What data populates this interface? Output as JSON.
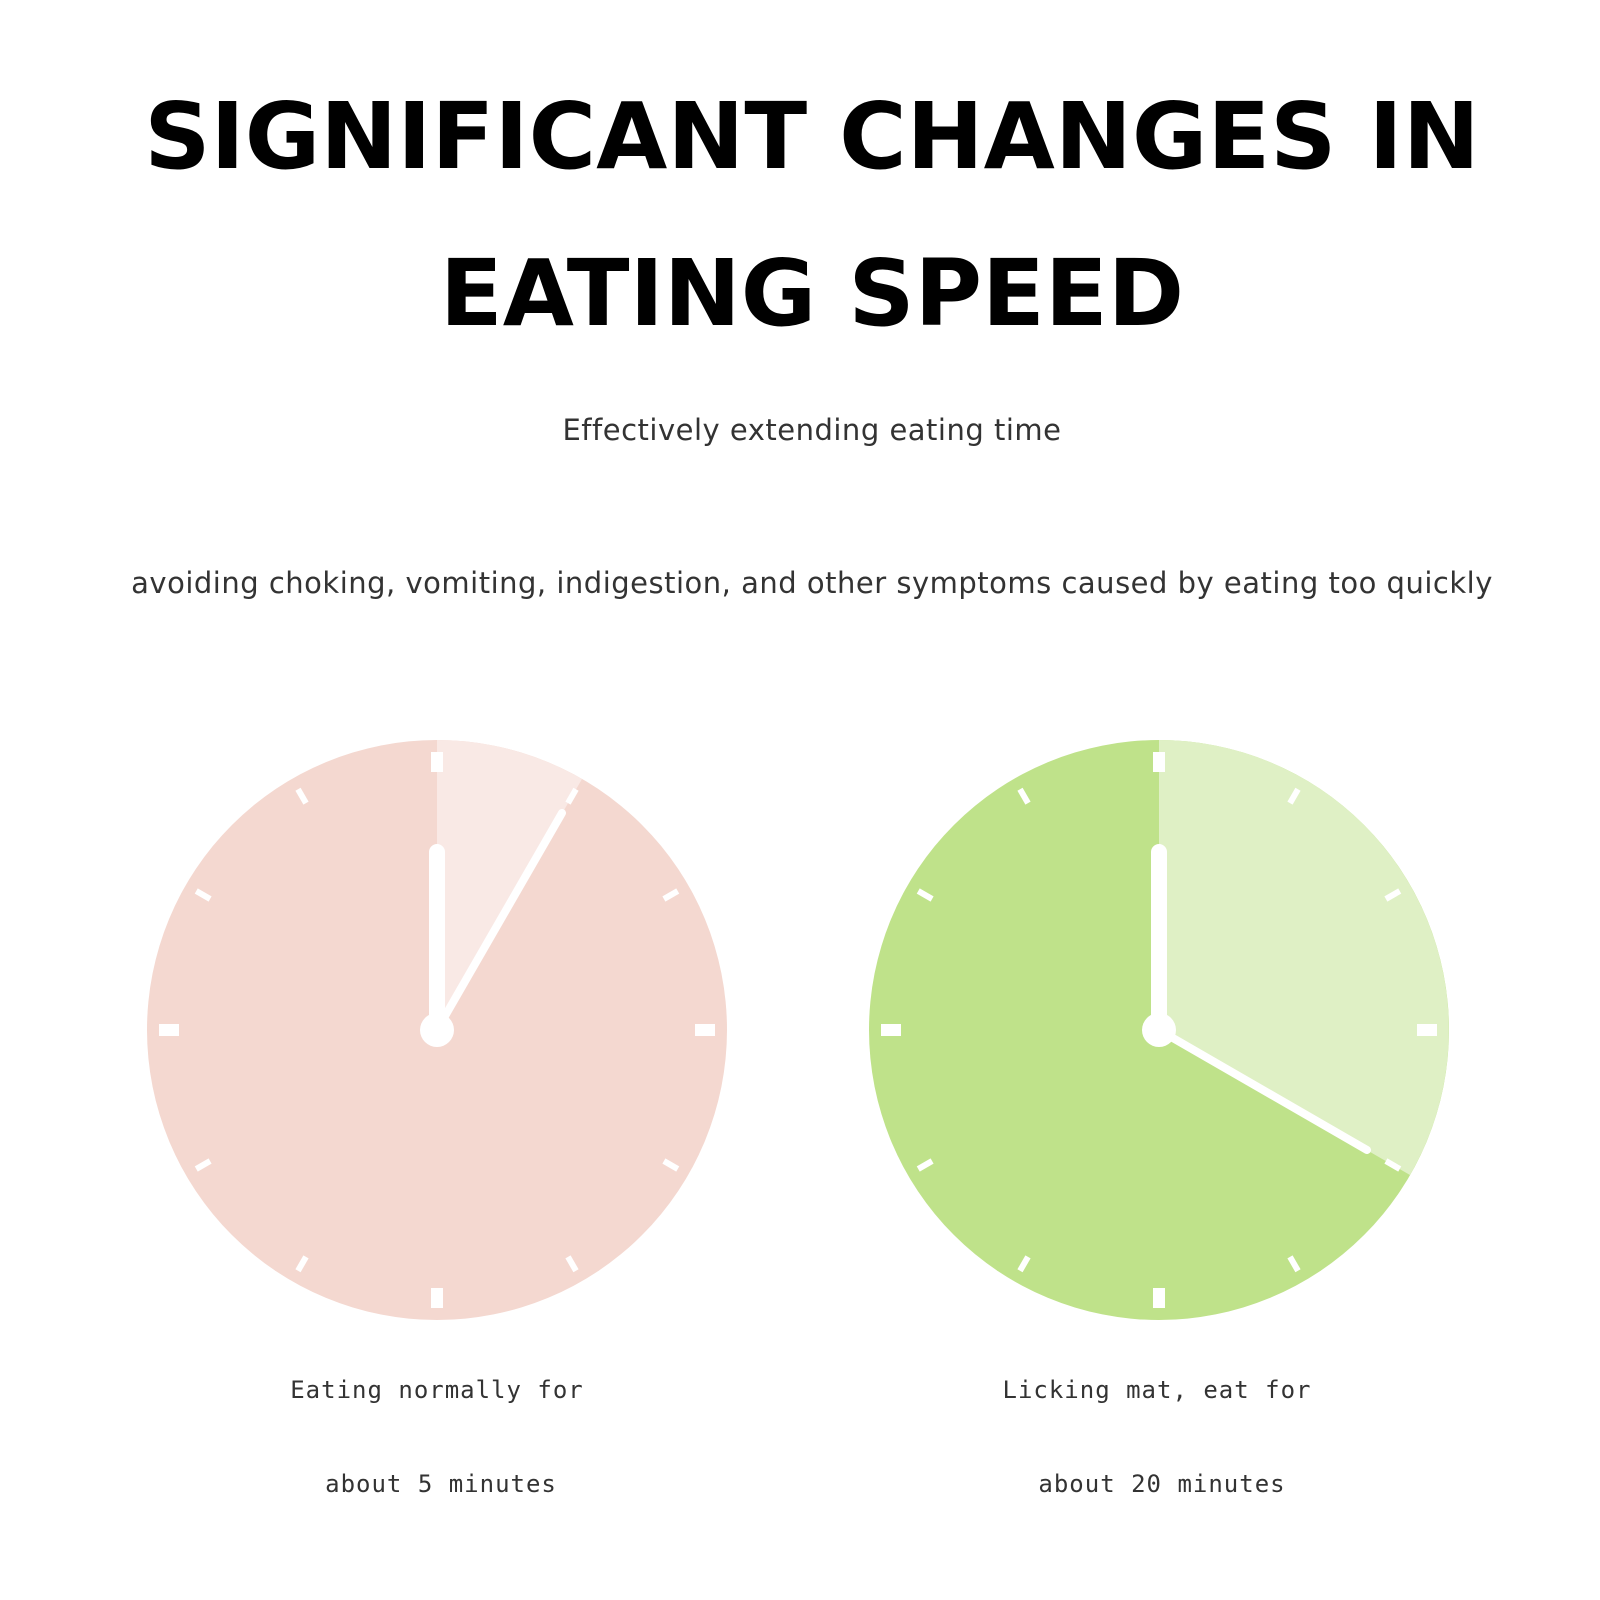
{
  "header": {
    "title_lines": [
      "SIGNIFICANT CHANGES IN",
      "EATING SPEED"
    ],
    "subtitle": "Effectively extending eating time",
    "description": "avoiding choking, vomiting, indigestion, and other symptoms caused by eating too quickly"
  },
  "clocks": [
    {
      "label_lines": [
        "Eating normally for",
        "about 5 minutes"
      ]
    },
    {
      "label_lines": [
        "Licking mat, eat for",
        "about 20 minutes"
      ]
    }
  ]
}
